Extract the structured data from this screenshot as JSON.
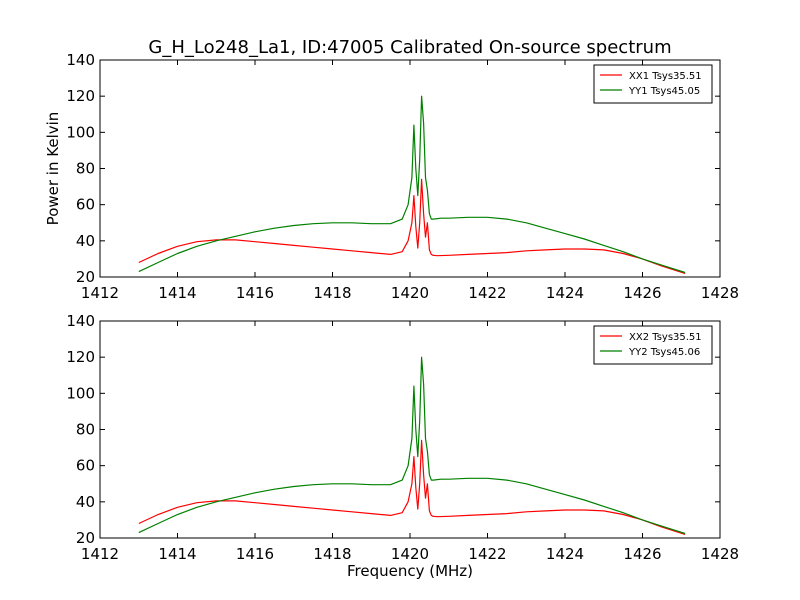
{
  "title": "G_H_Lo248_La1, ID:47005 Calibrated On-source spectrum",
  "colors": {
    "xx": "#ff0000",
    "yy": "#008000",
    "axes": "#000000"
  },
  "chart_data": [
    {
      "type": "line",
      "ylabel": "Power in Kelvin",
      "xlabel": "",
      "xlim": [
        1412,
        1428
      ],
      "ylim": [
        20,
        140
      ],
      "xticks": [
        1412,
        1414,
        1416,
        1418,
        1420,
        1422,
        1424,
        1426,
        1428
      ],
      "yticks": [
        20,
        40,
        60,
        80,
        100,
        120,
        140
      ],
      "legend_position": "top-right",
      "series": [
        {
          "name": "XX1 Tsys35.51",
          "color": "#ff0000",
          "x": [
            1413.0,
            1413.5,
            1414.0,
            1414.5,
            1415.0,
            1415.5,
            1416.0,
            1416.5,
            1417.0,
            1417.5,
            1418.0,
            1418.5,
            1419.0,
            1419.5,
            1419.8,
            1419.95,
            1420.05,
            1420.1,
            1420.15,
            1420.2,
            1420.25,
            1420.3,
            1420.35,
            1420.4,
            1420.45,
            1420.5,
            1420.55,
            1420.6,
            1420.7,
            1421.0,
            1421.5,
            1422.0,
            1422.5,
            1423.0,
            1423.5,
            1424.0,
            1424.5,
            1425.0,
            1425.5,
            1426.0,
            1426.5,
            1427.1
          ],
          "y": [
            28,
            33,
            37,
            39.5,
            40.5,
            40.5,
            39.5,
            38.5,
            37.5,
            36.5,
            35.5,
            34.5,
            33.5,
            32.5,
            34,
            40,
            50,
            65,
            48,
            36,
            50,
            74,
            55,
            42,
            50,
            35,
            32.5,
            32,
            31.8,
            32,
            32.5,
            33,
            33.5,
            34.5,
            35,
            35.5,
            35.5,
            35,
            33,
            30,
            26,
            22
          ]
        },
        {
          "name": "YY1 Tsys45.05",
          "color": "#008000",
          "x": [
            1413.0,
            1413.5,
            1414.0,
            1414.5,
            1415.0,
            1415.5,
            1416.0,
            1416.5,
            1417.0,
            1417.5,
            1418.0,
            1418.5,
            1419.0,
            1419.5,
            1419.8,
            1419.95,
            1420.05,
            1420.1,
            1420.15,
            1420.2,
            1420.25,
            1420.3,
            1420.35,
            1420.4,
            1420.45,
            1420.5,
            1420.55,
            1420.6,
            1420.8,
            1421.0,
            1421.5,
            1422.0,
            1422.5,
            1423.0,
            1423.5,
            1424.0,
            1424.5,
            1425.0,
            1425.5,
            1426.0,
            1426.5,
            1427.1
          ],
          "y": [
            23,
            28,
            33,
            37,
            40,
            42.5,
            45,
            47,
            48.5,
            49.5,
            50,
            50,
            49.5,
            49.5,
            52,
            60,
            75,
            104,
            80,
            65,
            85,
            120,
            105,
            75,
            68,
            55,
            52,
            52,
            52.5,
            52.5,
            53,
            53,
            52,
            50,
            47,
            44,
            41,
            37.5,
            34,
            30,
            26.5,
            22.5
          ]
        }
      ]
    },
    {
      "type": "line",
      "ylabel": "",
      "xlabel": "Frequency (MHz)",
      "xlim": [
        1412,
        1428
      ],
      "ylim": [
        20,
        140
      ],
      "xticks": [
        1412,
        1414,
        1416,
        1418,
        1420,
        1422,
        1424,
        1426,
        1428
      ],
      "yticks": [
        20,
        40,
        60,
        80,
        100,
        120,
        140
      ],
      "legend_position": "top-right",
      "series": [
        {
          "name": "XX2 Tsys35.51",
          "color": "#ff0000",
          "x": [
            1413.0,
            1413.5,
            1414.0,
            1414.5,
            1415.0,
            1415.5,
            1416.0,
            1416.5,
            1417.0,
            1417.5,
            1418.0,
            1418.5,
            1419.0,
            1419.5,
            1419.8,
            1419.95,
            1420.05,
            1420.1,
            1420.15,
            1420.2,
            1420.25,
            1420.3,
            1420.35,
            1420.4,
            1420.45,
            1420.5,
            1420.55,
            1420.6,
            1420.7,
            1421.0,
            1421.5,
            1422.0,
            1422.5,
            1423.0,
            1423.5,
            1424.0,
            1424.5,
            1425.0,
            1425.5,
            1426.0,
            1426.5,
            1427.1
          ],
          "y": [
            28,
            33,
            37,
            39.5,
            40.5,
            40.5,
            39.5,
            38.5,
            37.5,
            36.5,
            35.5,
            34.5,
            33.5,
            32.5,
            34,
            40,
            50,
            65,
            48,
            36,
            50,
            74,
            55,
            42,
            50,
            35,
            32.5,
            32,
            31.8,
            32,
            32.5,
            33,
            33.5,
            34.5,
            35,
            35.5,
            35.5,
            35,
            33,
            30,
            26,
            22
          ]
        },
        {
          "name": "YY2 Tsys45.06",
          "color": "#008000",
          "x": [
            1413.0,
            1413.5,
            1414.0,
            1414.5,
            1415.0,
            1415.5,
            1416.0,
            1416.5,
            1417.0,
            1417.5,
            1418.0,
            1418.5,
            1419.0,
            1419.5,
            1419.8,
            1419.95,
            1420.05,
            1420.1,
            1420.15,
            1420.2,
            1420.25,
            1420.3,
            1420.35,
            1420.4,
            1420.45,
            1420.5,
            1420.55,
            1420.6,
            1420.8,
            1421.0,
            1421.5,
            1422.0,
            1422.5,
            1423.0,
            1423.5,
            1424.0,
            1424.5,
            1425.0,
            1425.5,
            1426.0,
            1426.5,
            1427.1
          ],
          "y": [
            23,
            28,
            33,
            37,
            40,
            42.5,
            45,
            47,
            48.5,
            49.5,
            50,
            50,
            49.5,
            49.5,
            52,
            60,
            75,
            104,
            80,
            65,
            85,
            120,
            105,
            75,
            68,
            55,
            52,
            52,
            52.5,
            52.5,
            53,
            53,
            52,
            50,
            47,
            44,
            41,
            37.5,
            34,
            30,
            26.5,
            22.5
          ]
        }
      ]
    }
  ]
}
